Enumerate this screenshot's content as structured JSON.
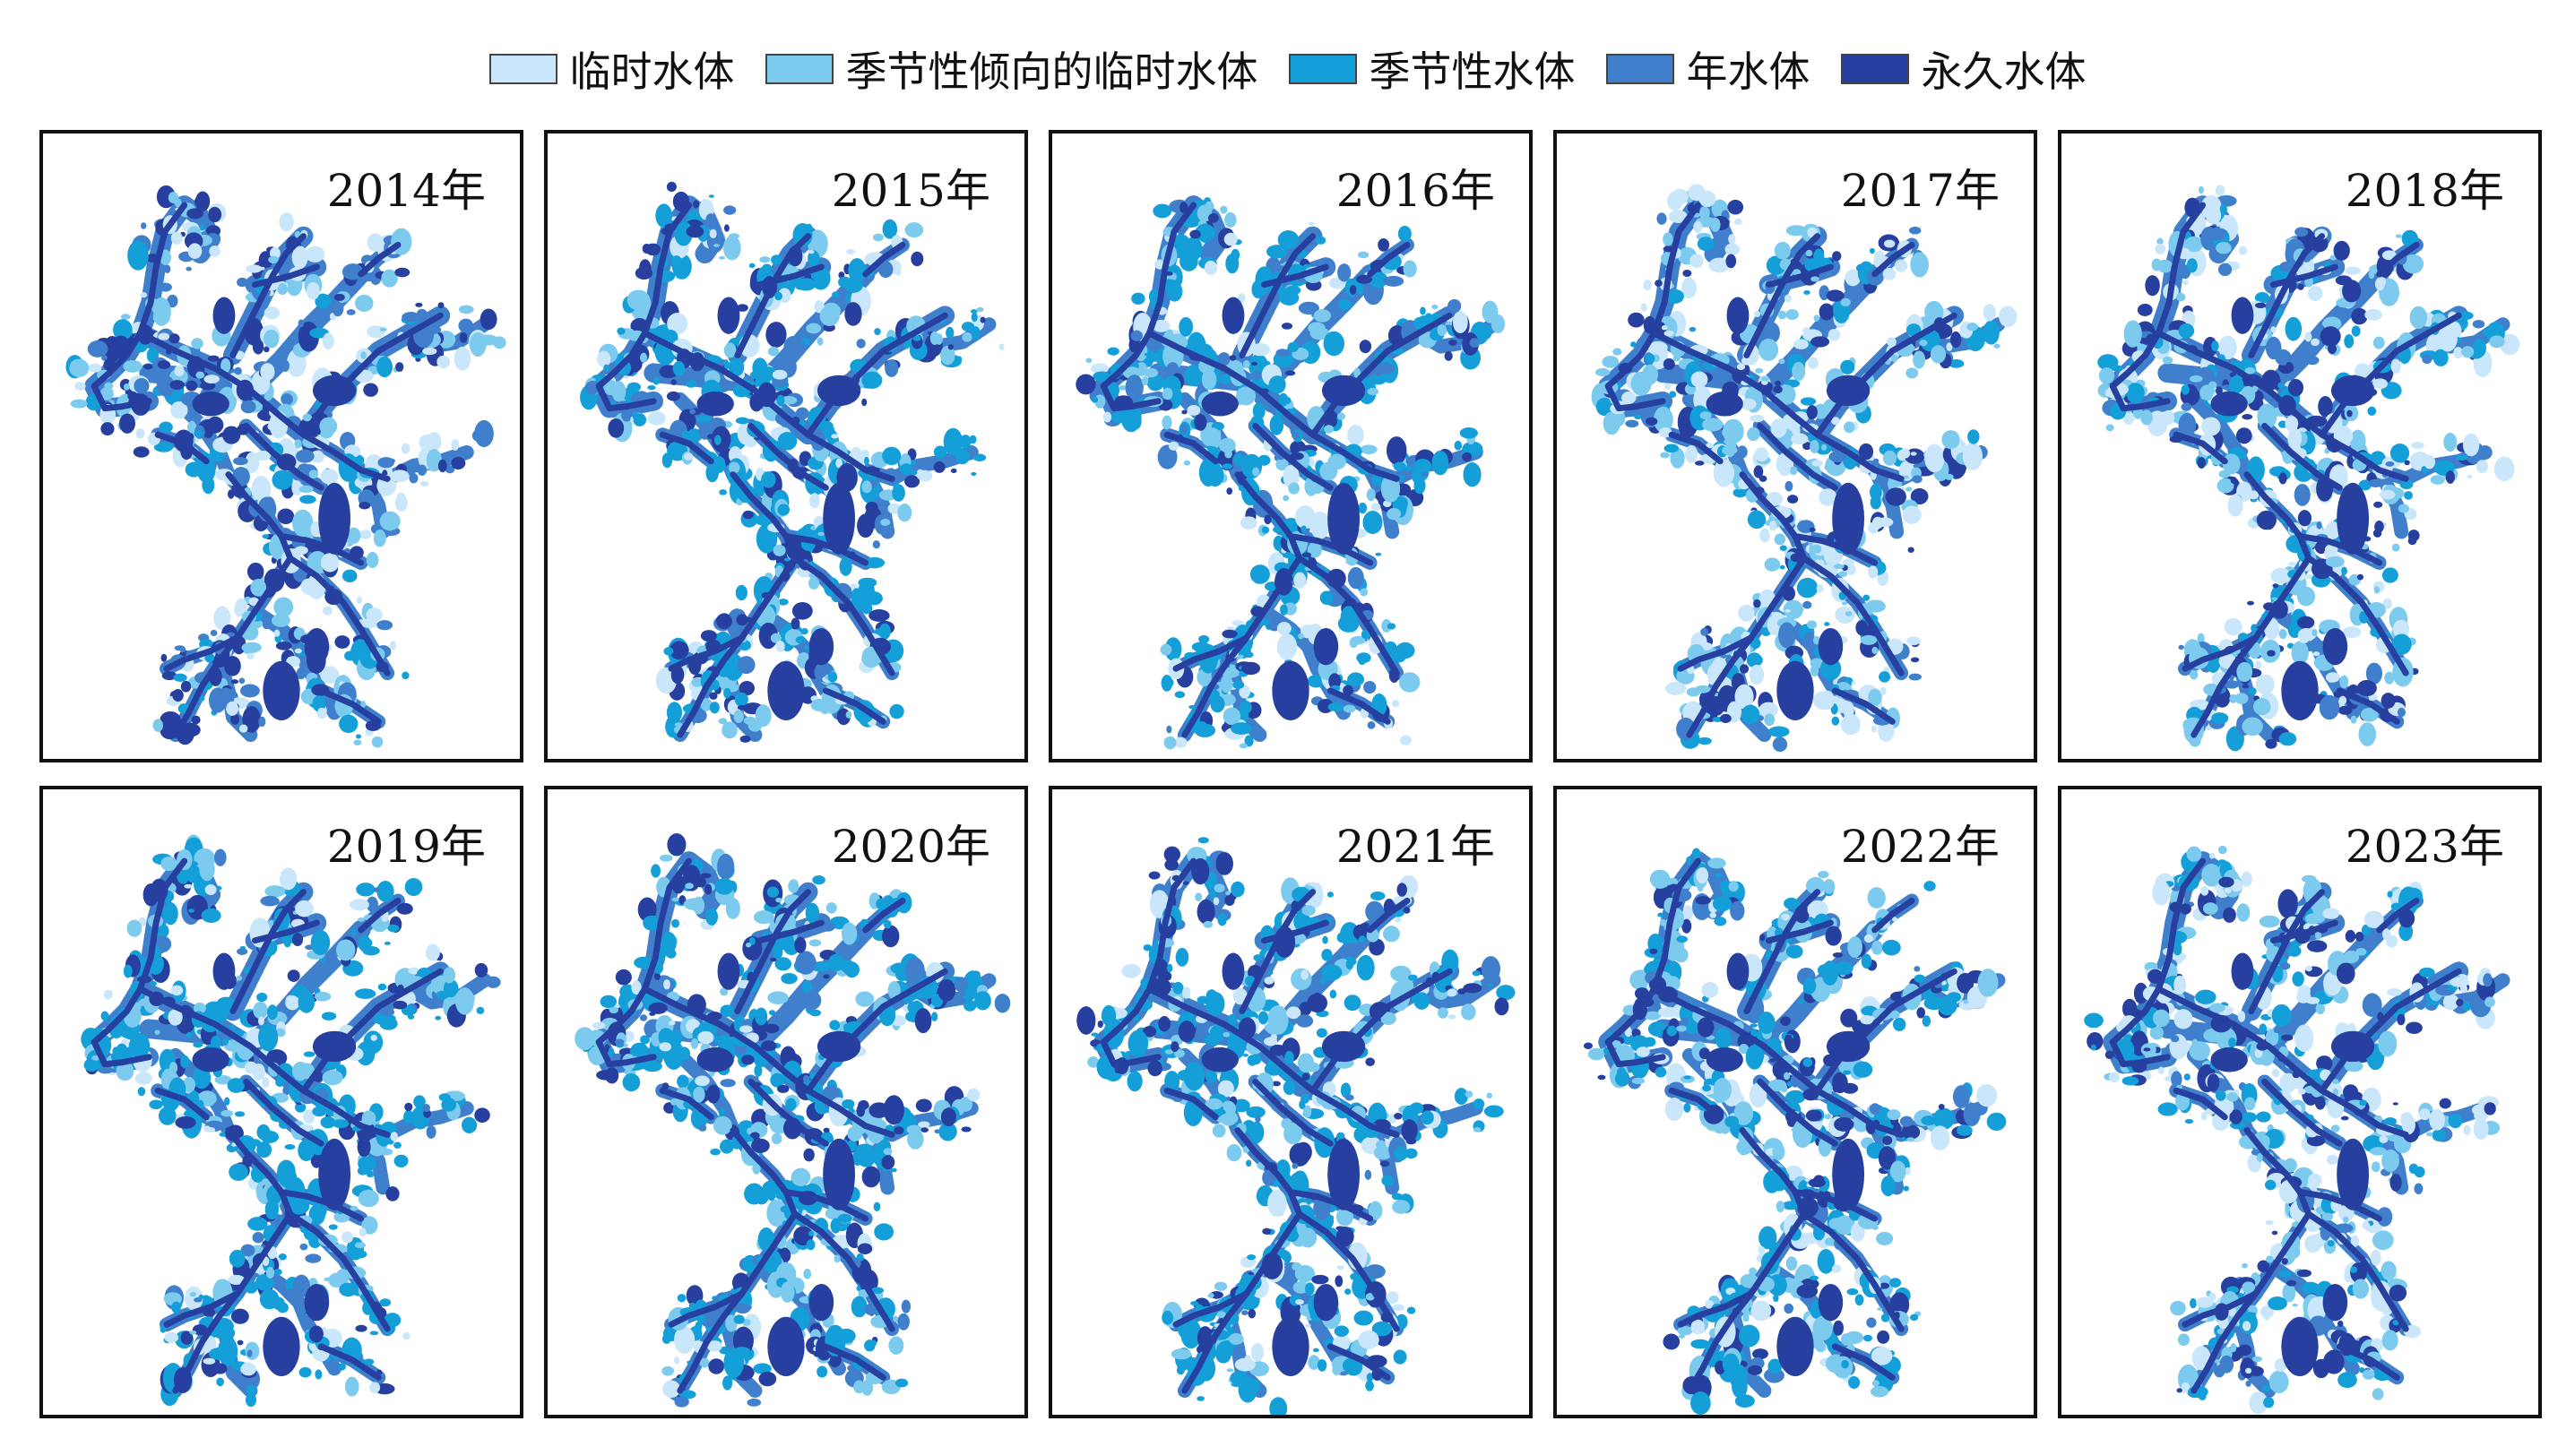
{
  "legend": {
    "items": [
      {
        "label": "临时水体",
        "color": "#c9e6fa"
      },
      {
        "label": "季节性倾向的临时水体",
        "color": "#7ccaee"
      },
      {
        "label": "季节性水体",
        "color": "#159fd9"
      },
      {
        "label": "年水体",
        "color": "#3f7fcc"
      },
      {
        "label": "永久水体",
        "color": "#273f9e"
      }
    ]
  },
  "panels": [
    {
      "year": "2014年",
      "weights": [
        0.25,
        0.2,
        0.1,
        0.2,
        0.25
      ]
    },
    {
      "year": "2015年",
      "weights": [
        0.12,
        0.2,
        0.4,
        0.1,
        0.18
      ]
    },
    {
      "year": "2016年",
      "weights": [
        0.1,
        0.22,
        0.42,
        0.08,
        0.18
      ]
    },
    {
      "year": "2017年",
      "weights": [
        0.3,
        0.28,
        0.15,
        0.08,
        0.19
      ]
    },
    {
      "year": "2018年",
      "weights": [
        0.28,
        0.25,
        0.17,
        0.1,
        0.2
      ]
    },
    {
      "year": "2019年",
      "weights": [
        0.1,
        0.2,
        0.45,
        0.07,
        0.18
      ]
    },
    {
      "year": "2020年",
      "weights": [
        0.08,
        0.2,
        0.47,
        0.07,
        0.18
      ]
    },
    {
      "year": "2021年",
      "weights": [
        0.1,
        0.22,
        0.43,
        0.07,
        0.18
      ]
    },
    {
      "year": "2022年",
      "weights": [
        0.15,
        0.26,
        0.34,
        0.07,
        0.18
      ]
    },
    {
      "year": "2023年",
      "weights": [
        0.28,
        0.27,
        0.18,
        0.08,
        0.19
      ]
    }
  ]
}
